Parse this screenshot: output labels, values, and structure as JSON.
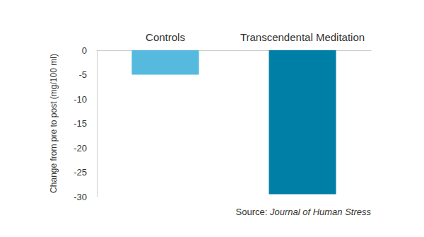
{
  "chart_data": {
    "type": "bar",
    "categories": [
      "Controls",
      "Transcendental Meditation"
    ],
    "values": [
      -5,
      -29.5
    ],
    "colors": [
      "#56b9de",
      "#007fa6"
    ],
    "ylabel": "Change from pre to post (mg/100 ml)",
    "ylim": [
      -30,
      0
    ],
    "yticks": [
      -30,
      -25,
      -20,
      -15,
      -10,
      -5,
      0
    ],
    "grid": false,
    "annotations": [
      "Source: Journal of Human Stress"
    ]
  }
}
